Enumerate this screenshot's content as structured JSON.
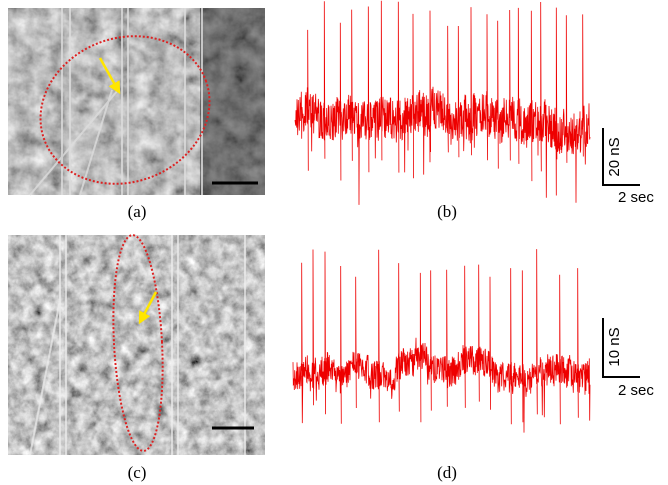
{
  "panels": [
    {
      "label": "(a)"
    },
    {
      "label": "(b)",
      "scale_y": "20 nS",
      "scale_x": "2 sec"
    },
    {
      "label": "(c)"
    },
    {
      "label": "(d)",
      "scale_y": "10 nS",
      "scale_x": "2 sec"
    }
  ]
}
